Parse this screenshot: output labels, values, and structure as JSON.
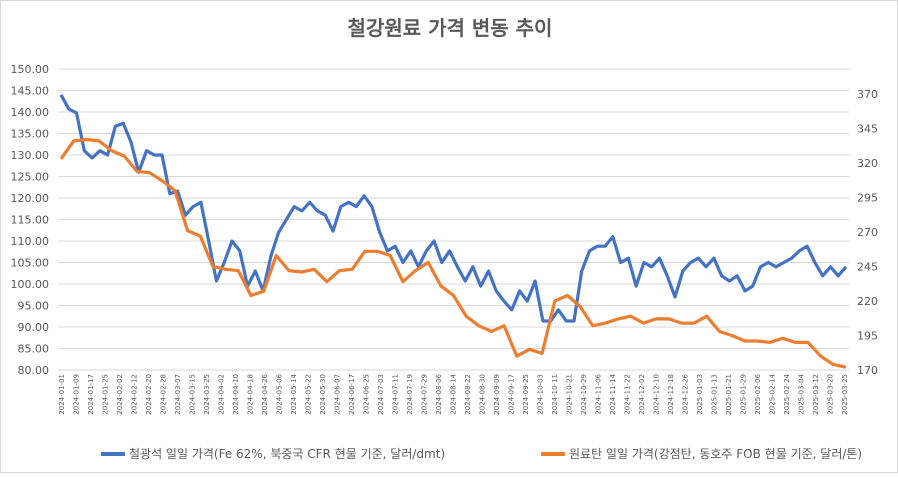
{
  "chart_data": {
    "type": "line",
    "title": "철강원료 가격 변동 추이",
    "x_range": [
      "2024-01-01",
      "2025-03-25"
    ],
    "x_tick_labels": [
      "2024-01-01",
      "2024-01-09",
      "2024-01-17",
      "2024-01-25",
      "2024-02-02",
      "2024-02-12",
      "2024-02-20",
      "2024-02-28",
      "2024-03-07",
      "2024-03-15",
      "2024-03-25",
      "2024-04-02",
      "2024-04-10",
      "2024-04-18",
      "2024-04-26",
      "2024-05-06",
      "2024-05-14",
      "2024-05-22",
      "2024-05-30",
      "2024-06-07",
      "2024-06-17",
      "2024-06-25",
      "2024-07-03",
      "2024-07-11",
      "2024-07-19",
      "2024-07-29",
      "2024-08-06",
      "2024-08-14",
      "2024-08-22",
      "2024-08-30",
      "2024-09-09",
      "2024-09-17",
      "2024-09-25",
      "2024-10-03",
      "2024-10-11",
      "2024-10-21",
      "2024-10-29",
      "2024-11-06",
      "2024-11-14",
      "2024-11-22",
      "2024-12-02",
      "2024-12-10",
      "2024-12-18",
      "2024-12-26",
      "2025-01-03",
      "2025-01-13",
      "2025-01-21",
      "2025-01-29",
      "2025-02-06",
      "2025-02-14",
      "2025-02-24",
      "2025-03-04",
      "2025-03-12",
      "2025-03-20",
      "2025-03-25"
    ],
    "left_axis": {
      "min": 80,
      "max": 150,
      "step": 5,
      "ticks": [
        "80.00",
        "85.00",
        "90.00",
        "95.00",
        "100.00",
        "105.00",
        "110.00",
        "115.00",
        "120.00",
        "125.00",
        "130.00",
        "135.00",
        "140.00",
        "145.00",
        "150.00"
      ]
    },
    "right_axis": {
      "min": 170,
      "max": 370,
      "ticks": [
        "170",
        "195",
        "220",
        "245",
        "270",
        "295",
        "320",
        "345",
        "370"
      ]
    },
    "grid": "horizontal",
    "legend_position": "bottom",
    "series": [
      {
        "name": "철광석 일일 가격(Fe 62%, 북중국 CFR 현물 기준, 달러/dmt)",
        "axis": "left",
        "color": "#4472C4",
        "values": [
          144,
          140.7,
          139.8,
          131,
          129.3,
          131,
          130,
          136.7,
          137.4,
          133,
          126,
          131,
          130,
          130,
          121,
          121.6,
          116,
          118,
          119,
          110,
          100.7,
          105,
          110,
          107.7,
          99.5,
          103,
          98.4,
          106.5,
          112,
          115,
          118,
          117,
          119,
          117,
          116,
          112.3,
          118,
          119,
          118,
          120.5,
          118,
          112,
          107.7,
          108.8,
          105,
          107.7,
          104,
          107.7,
          110,
          105,
          107.7,
          104,
          100.7,
          104,
          99.5,
          103,
          98.4,
          96,
          94,
          98.4,
          96,
          100.7,
          91.4,
          91.4,
          94,
          91.4,
          91.4,
          103,
          107.7,
          108.8,
          108.8,
          111,
          105,
          106,
          99.5,
          105,
          104,
          106,
          101.9,
          97,
          103,
          105,
          106,
          104,
          106,
          101.9,
          100.7,
          101.9,
          98.4,
          99.5,
          104,
          105,
          104,
          105,
          106,
          107.7,
          108.8,
          105,
          101.9,
          104,
          101.9,
          104
        ]
      },
      {
        "name": "원료탄 일일 가격(강점탄, 동호주 FOB 현물 기준, 달러/톤)",
        "axis": "right",
        "color": "#ED7D31",
        "values": [
          323,
          336,
          337,
          336,
          329,
          325,
          314,
          313,
          307,
          300,
          271,
          267,
          245,
          243,
          242,
          224,
          227,
          253,
          242,
          241,
          243,
          234,
          242,
          243,
          256,
          256,
          253,
          234,
          242,
          248,
          231,
          224,
          209,
          202,
          198,
          202,
          180,
          185,
          182,
          220,
          224,
          216,
          202,
          204,
          207,
          209,
          204,
          207,
          207,
          204,
          204,
          209,
          198,
          195,
          191,
          191,
          190,
          193,
          190,
          190,
          180,
          174,
          172
        ]
      }
    ]
  }
}
